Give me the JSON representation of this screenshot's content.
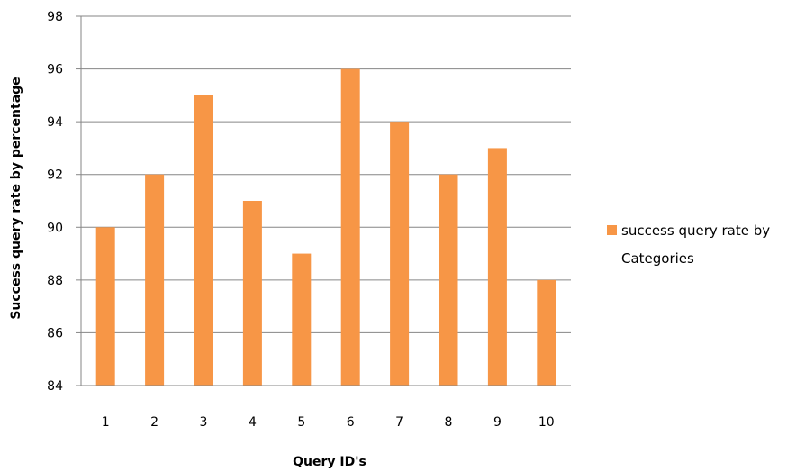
{
  "chart_data": {
    "type": "bar",
    "categories": [
      "1",
      "2",
      "3",
      "4",
      "5",
      "6",
      "7",
      "8",
      "9",
      "10"
    ],
    "series": [
      {
        "name": "success query rate by Categories",
        "values": [
          90,
          92,
          95,
          91,
          89,
          96,
          94,
          92,
          93,
          88
        ],
        "color": "#F79646"
      }
    ],
    "xlabel": "Query ID's",
    "ylabel": "Success query rate by percentage",
    "ylim": [
      84,
      98
    ],
    "yticks": [
      "84",
      "86",
      "88",
      "90",
      "92",
      "94",
      "96",
      "98"
    ],
    "grid": true,
    "legend": {
      "placement": "right",
      "lines": [
        "success query rate by",
        "Categories"
      ]
    }
  }
}
